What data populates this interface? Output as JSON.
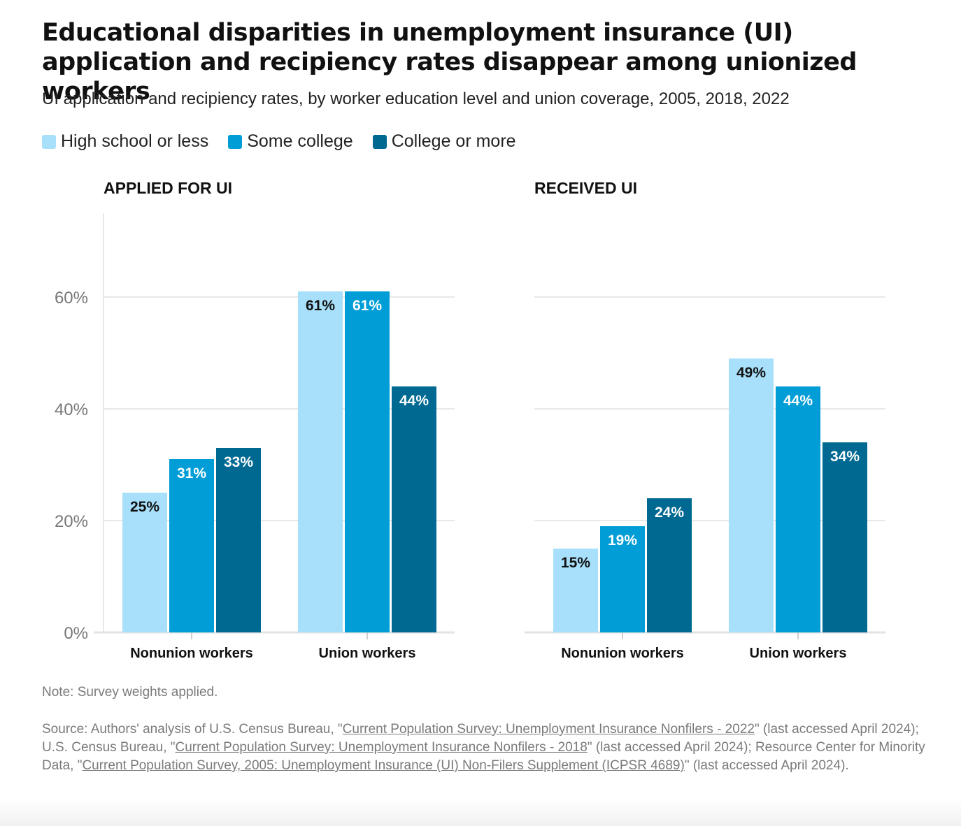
{
  "title": "Educational disparities in unemployment insurance (UI) application and recipiency rates disappear among unionized workers",
  "subtitle": "UI application and recipiency rates, by worker education level and union coverage, 2005, 2018, 2022",
  "legend": [
    {
      "label": "High school or less",
      "color": "#a8e0fb"
    },
    {
      "label": "Some college",
      "color": "#009dd6"
    },
    {
      "label": "College or more",
      "color": "#006991"
    }
  ],
  "chart_data": [
    {
      "type": "bar",
      "title": "APPLIED FOR UI",
      "categories": [
        "Nonunion workers",
        "Union workers"
      ],
      "series": [
        {
          "name": "High school or less",
          "values": [
            25,
            61
          ],
          "labels": [
            "25%",
            "61%"
          ]
        },
        {
          "name": "Some college",
          "values": [
            31,
            61
          ],
          "labels": [
            "31%",
            "61%"
          ]
        },
        {
          "name": "College or more",
          "values": [
            33,
            44
          ],
          "labels": [
            "33%",
            "44%"
          ]
        }
      ],
      "ylim": [
        0,
        75
      ],
      "yticks": [
        0,
        20,
        40,
        60
      ],
      "ytick_labels": [
        "0%",
        "20%",
        "40%",
        "60%"
      ],
      "xlabel": "",
      "ylabel": ""
    },
    {
      "type": "bar",
      "title": "RECEIVED UI",
      "categories": [
        "Nonunion workers",
        "Union workers"
      ],
      "series": [
        {
          "name": "High school or less",
          "values": [
            15,
            49
          ],
          "labels": [
            "15%",
            "49%"
          ]
        },
        {
          "name": "Some college",
          "values": [
            19,
            44
          ],
          "labels": [
            "19%",
            "44%"
          ]
        },
        {
          "name": "College or more",
          "values": [
            24,
            34
          ],
          "labels": [
            "24%",
            "34%"
          ]
        }
      ],
      "ylim": [
        0,
        75
      ],
      "yticks": [
        0,
        20,
        40,
        60
      ],
      "xlabel": "",
      "ylabel": ""
    }
  ],
  "note": "Note: Survey weights applied.",
  "source": {
    "p1": "Source: Authors' analysis of U.S. Census Bureau, \"",
    "link1": "Current Population Survey: Unemployment Insurance Nonfilers - 2022",
    "p2": "\" (last accessed April 2024); U.S. Census Bureau, \"",
    "link2": "Current Population Survey: Unemployment Insurance Nonfilers - 2018",
    "p3": "\" (last accessed April 2024); Resource Center for Minority Data, \"",
    "link3": "Current Population Survey, 2005: Unemployment Insurance (UI) Non-Filers Supplement (ICPSR 4689)",
    "p4": "\" (last accessed April 2024)."
  }
}
